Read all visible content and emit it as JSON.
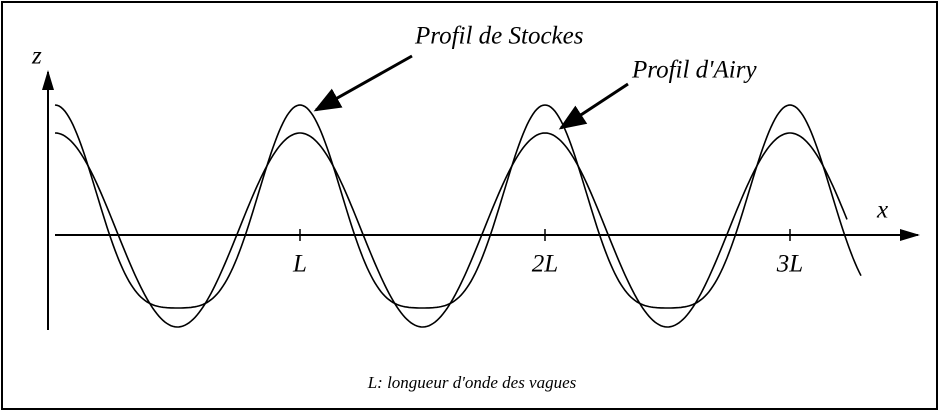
{
  "axes": {
    "z_label": "z",
    "x_label": "x",
    "ticks": [
      "L",
      "2L",
      "3L"
    ]
  },
  "annotations": {
    "stokes": "Profil de Stockes",
    "airy": "Profil d'Airy"
  },
  "caption": "L: longueur d'onde des vagues"
}
